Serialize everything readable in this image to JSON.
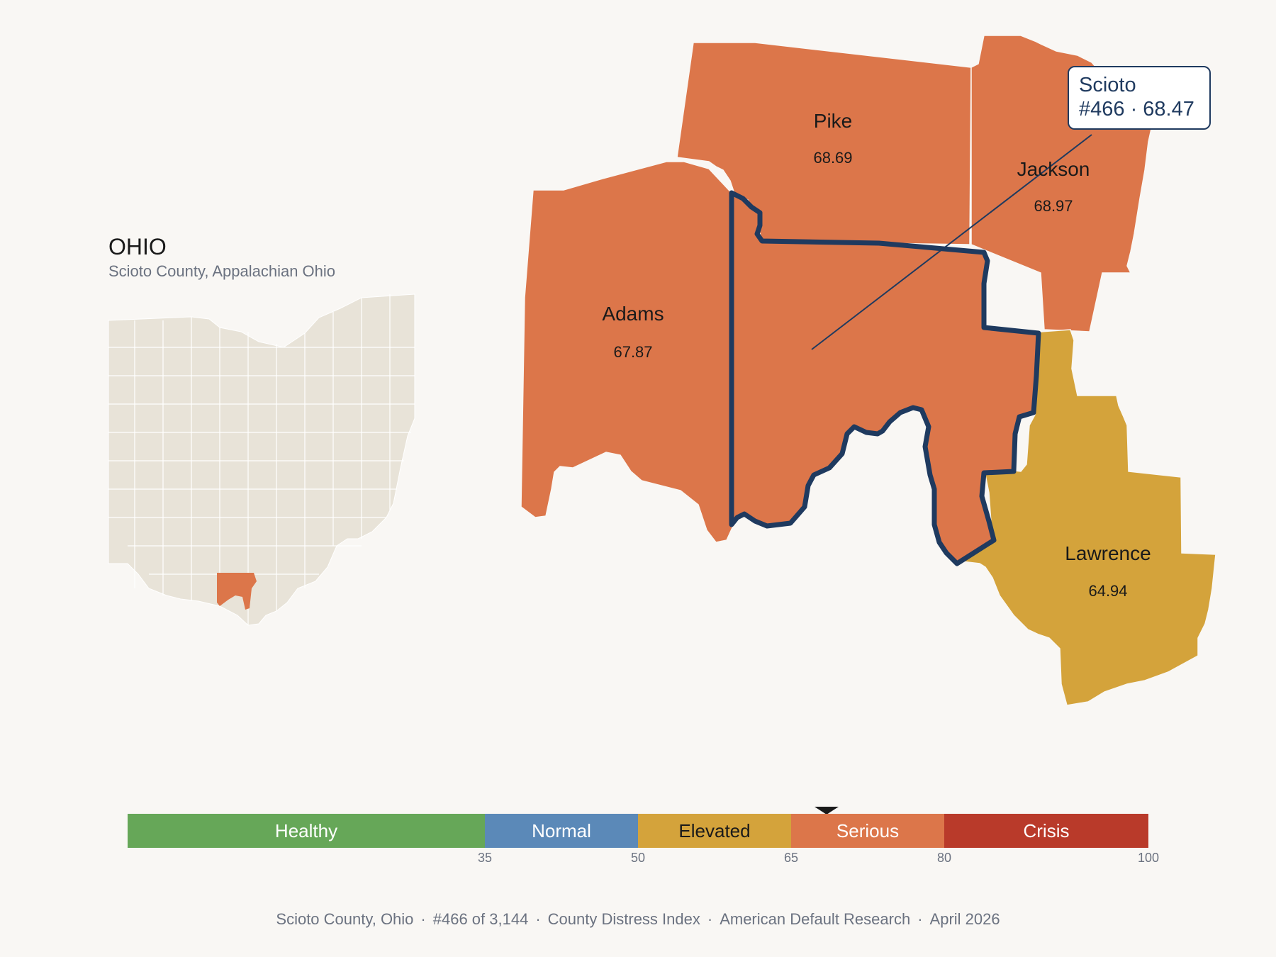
{
  "state": {
    "title": "OHIO",
    "subtitle": "Scioto County, Appalachian Ohio"
  },
  "counties": [
    {
      "name": "Pike",
      "value": "68.69",
      "category": "Serious"
    },
    {
      "name": "Jackson",
      "value": "68.97",
      "category": "Serious"
    },
    {
      "name": "Adams",
      "value": "67.87",
      "category": "Serious"
    },
    {
      "name": "Lawrence",
      "value": "64.94",
      "category": "Elevated"
    }
  ],
  "highlight": {
    "name": "Scioto",
    "rank_value": "#466 · 68.47",
    "value": 68.47
  },
  "colors": {
    "serious": "#dc764a",
    "elevated": "#d4a33b",
    "outline": "#1f3a5f",
    "inset_land": "#e8e3d8"
  },
  "scale": {
    "segments": [
      {
        "label": "Healthy",
        "color": "#66a758",
        "min": 0,
        "max": 35
      },
      {
        "label": "Normal",
        "color": "#5b89b8",
        "min": 35,
        "max": 50
      },
      {
        "label": "Elevated",
        "color": "#d4a33b",
        "min": 50,
        "max": 65
      },
      {
        "label": "Serious",
        "color": "#dc764a",
        "min": 65,
        "max": 80
      },
      {
        "label": "Crisis",
        "color": "#b93a2a",
        "min": 80,
        "max": 100
      }
    ],
    "ticks": [
      "35",
      "50",
      "65",
      "80",
      "100"
    ]
  },
  "footer": {
    "county": "Scioto County, Ohio",
    "rank": "#466 of 3,144",
    "index": "County Distress Index",
    "source": "American Default Research",
    "date": "April 2026",
    "separator": "·"
  }
}
